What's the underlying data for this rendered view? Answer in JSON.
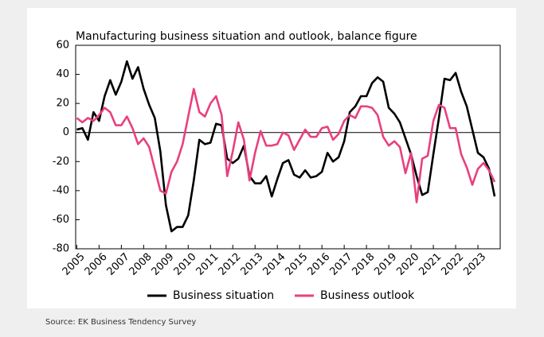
{
  "chart_data": {
    "type": "line",
    "title": "Manufacturing business situation and outlook, balance figure",
    "source": "Source: EK Business Tendency Survey",
    "x": [
      2005,
      2005.25,
      2005.5,
      2005.75,
      2006,
      2006.25,
      2006.5,
      2006.75,
      2007,
      2007.25,
      2007.5,
      2007.75,
      2008,
      2008.25,
      2008.5,
      2008.75,
      2009,
      2009.25,
      2009.5,
      2009.75,
      2010,
      2010.25,
      2010.5,
      2010.75,
      2011,
      2011.25,
      2011.5,
      2011.75,
      2012,
      2012.25,
      2012.5,
      2012.75,
      2013,
      2013.25,
      2013.5,
      2013.75,
      2014,
      2014.25,
      2014.5,
      2014.75,
      2015,
      2015.25,
      2015.5,
      2015.75,
      2016,
      2016.25,
      2016.5,
      2016.75,
      2017,
      2017.25,
      2017.5,
      2017.75,
      2018,
      2018.25,
      2018.5,
      2018.75,
      2019,
      2019.25,
      2019.5,
      2019.75,
      2020,
      2020.25,
      2020.5,
      2020.75,
      2021,
      2021.25,
      2021.5,
      2021.75,
      2022,
      2022.25,
      2022.5,
      2022.75,
      2023,
      2023.25,
      2023.5,
      2023.75
    ],
    "series": [
      {
        "name": "Business situation",
        "color": "#000000",
        "values": [
          2,
          3,
          -5,
          14,
          8,
          25,
          36,
          26,
          35,
          49,
          37,
          45,
          30,
          19,
          10,
          -13,
          -50,
          -68,
          -65,
          -65,
          -57,
          -33,
          -5,
          -8,
          -7,
          6,
          5,
          -18,
          -21,
          -18,
          -9,
          -30,
          -35,
          -35,
          -30,
          -44,
          -32,
          -21,
          -19,
          -29,
          -31,
          -26,
          -31,
          -30,
          -27,
          -14,
          -20,
          -17,
          -6,
          14,
          18,
          25,
          25,
          34,
          38,
          35,
          17,
          13,
          7,
          -4,
          -15,
          -30,
          -43,
          -41,
          -15,
          10,
          37,
          36,
          41,
          28,
          18,
          2,
          -14,
          -17,
          -25,
          -44
        ]
      },
      {
        "name": "Business outlook",
        "color": "#e8407f",
        "values": [
          10,
          7,
          10,
          8,
          12,
          17,
          14,
          5,
          5,
          11,
          3,
          -8,
          -4,
          -10,
          -25,
          -40,
          -42,
          -27,
          -20,
          -8,
          11,
          30,
          14,
          11,
          20,
          25,
          12,
          -30,
          -13,
          7,
          -5,
          -33,
          -14,
          1,
          -9,
          -9,
          -8,
          0,
          -2,
          -12,
          -5,
          2,
          -3,
          -3,
          3,
          4,
          -5,
          -1,
          8,
          12,
          10,
          18,
          18,
          17,
          12,
          -3,
          -9,
          -6,
          -10,
          -28,
          -14,
          -48,
          -18,
          -16,
          8,
          19,
          17,
          3,
          3,
          -15,
          -24,
          -36,
          -25,
          -21,
          -26,
          -34
        ]
      }
    ],
    "xlim": [
      2004.95,
      2024
    ],
    "xticks": [
      2005,
      2006,
      2007,
      2008,
      2009,
      2010,
      2011,
      2012,
      2013,
      2014,
      2015,
      2016,
      2017,
      2018,
      2019,
      2020,
      2021,
      2022,
      2023
    ],
    "ylim": [
      -80,
      60
    ],
    "yticks": [
      -80,
      -60,
      -40,
      -20,
      0,
      20,
      40,
      60
    ],
    "legend": "bottom"
  }
}
